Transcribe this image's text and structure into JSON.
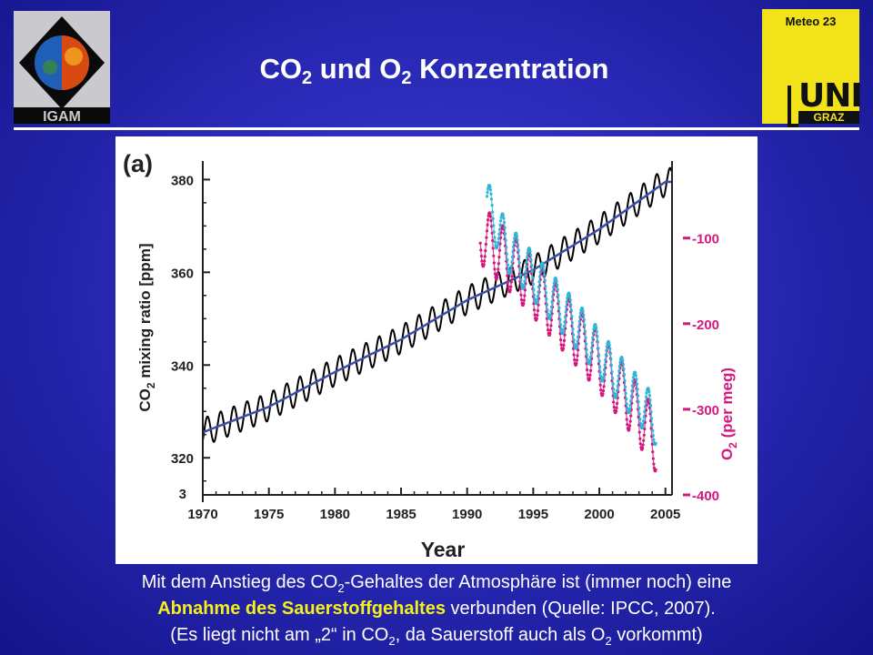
{
  "slide": {
    "title": {
      "pre": "CO",
      "sub1": "2",
      "mid": " und O",
      "sub2": "2",
      "post": " Konzentration"
    },
    "logo_left": {
      "text": "IGAM"
    },
    "logo_right": {
      "meteo": "Meteo 23",
      "uni": "UNI",
      "graz": "GRAZ"
    },
    "caption": {
      "line1_a": "Mit dem Anstieg des CO",
      "line1_sub": "2",
      "line1_b": "-Gehaltes der Atmosphäre ist (immer noch) eine",
      "line2_highlight": "Abnahme des Sauerstoffgehaltes",
      "line2_rest": " verbunden (Quelle: IPCC, 2007).",
      "line3_a": "(Es liegt nicht am „2“ in  CO",
      "line3_sub": "2",
      "line3_b": ", da Sauerstoff auch als O",
      "line3_sub2": "2",
      "line3_c": " vorkommt)"
    }
  },
  "chart_data": {
    "type": "line",
    "panel_label": "(a)",
    "xlabel": "Year",
    "ylabel_left": {
      "pre": "CO",
      "sub": "2",
      "post": " mixing ratio [ppm]"
    },
    "ylabel_right": {
      "pre": "O",
      "sub": "2",
      "post": " (per meg)"
    },
    "xlim": [
      1970,
      2005.5
    ],
    "ylim_left": [
      312,
      384
    ],
    "ylim_right": [
      -400,
      -10
    ],
    "x_ticks": [
      "1970",
      "1975",
      "1980",
      "1985",
      "1990",
      "1995",
      "2000",
      "2005"
    ],
    "y_left_ticks": [
      "320",
      "340",
      "360",
      "380"
    ],
    "y_left_clipped_tick": "3",
    "y_right_ticks": [
      "-100",
      "-200",
      "-300",
      "-400"
    ],
    "colors": {
      "co2_monthly": "#000000",
      "co2_trend": "#3b4fa8",
      "o2_a": "#d6177f",
      "o2_b": "#2eb6d8"
    },
    "series": [
      {
        "name": "",
        "axis": "left",
        "style": "monthly",
        "amplitude": 3.0,
        "trend_x": [
          1970,
          1975,
          1980,
          1985,
          1990,
          1995,
          2000,
          2005
        ],
        "trend_y": [
          325.5,
          331,
          338.5,
          345.5,
          354,
          360.5,
          369.3,
          379.5
        ]
      },
      {
        "name": "",
        "axis": "left",
        "style": "trend",
        "x": [
          1970,
          1975,
          1980,
          1985,
          1990,
          1995,
          2000,
          2005
        ],
        "y": [
          325.5,
          331,
          338.5,
          345.5,
          354,
          360.5,
          369.3,
          379.5
        ]
      },
      {
        "name": "",
        "axis": "right",
        "style": "o2",
        "amplitude": 35,
        "x": [
          1991,
          1992,
          1994,
          1996,
          1998,
          2000,
          2002,
          2004,
          2004.3
        ],
        "y": [
          -95,
          -110,
          -140,
          -175,
          -210,
          -245,
          -285,
          -330,
          -340
        ]
      },
      {
        "name": "",
        "axis": "right",
        "style": "o2",
        "amplitude": 28,
        "x": [
          1991.5,
          1993,
          1995,
          1997,
          1999,
          2001,
          2003,
          2004.3
        ],
        "y": [
          -60,
          -110,
          -145,
          -180,
          -215,
          -255,
          -290,
          -315
        ]
      }
    ]
  }
}
